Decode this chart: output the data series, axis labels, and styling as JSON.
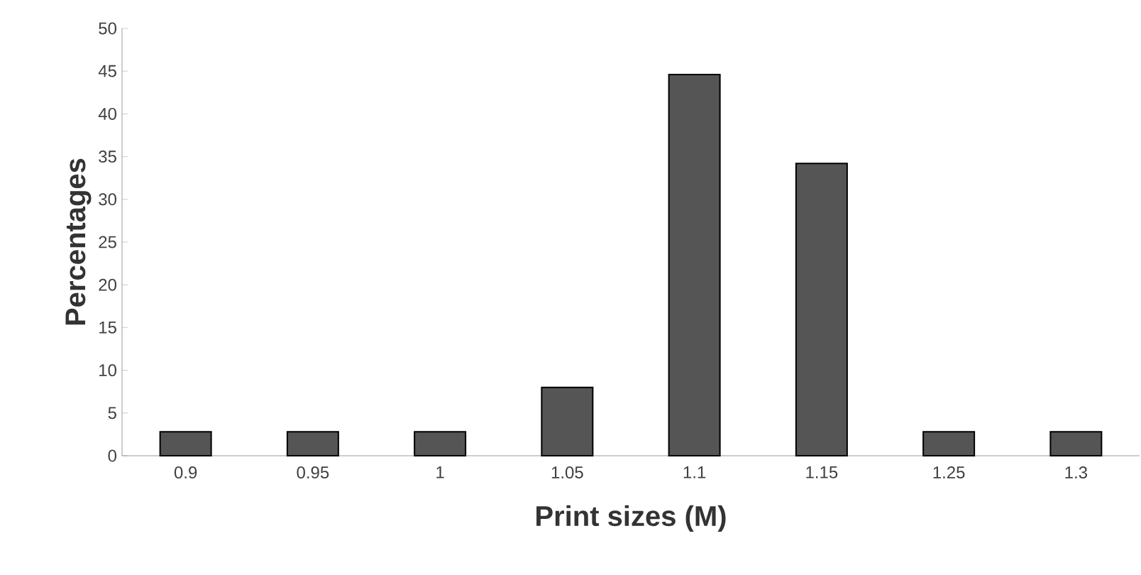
{
  "chart_data": {
    "type": "bar",
    "xlabel": "Print sizes (M)",
    "ylabel": "Percentages",
    "categories": [
      "0.9",
      "0.95",
      "1",
      "1.05",
      "1.1",
      "1.15",
      "1.25",
      "1.3"
    ],
    "values": [
      2.8,
      2.8,
      2.8,
      8,
      44.6,
      34.2,
      2.8,
      2.8
    ],
    "color": "#555555",
    "ylim": [
      0,
      50
    ],
    "yticks": [
      0,
      5,
      10,
      15,
      20,
      25,
      30,
      35,
      40,
      45,
      50
    ],
    "grid": false
  }
}
